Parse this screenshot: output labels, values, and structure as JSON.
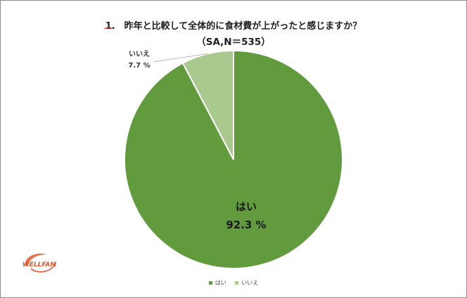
{
  "title_line1": "1.　昨年と比較して全体的に食材費が上がったと感じますか？",
  "title_line2": "（SA,N＝535）",
  "logo_text": "WELLFAM",
  "colors": {
    "yes": "#629a3e",
    "no": "#a9c98e",
    "border": "#ffffff",
    "logo": "#e4572e"
  },
  "chart_data": {
    "type": "pie",
    "title": "1.　昨年と比較して全体的に食材費が上がったと感じますか？",
    "subtitle": "（SA,N＝535）",
    "slices": [
      {
        "label": "はい",
        "value": 92.3,
        "value_label": "92.3 %"
      },
      {
        "label": "いいえ",
        "value": 7.7,
        "value_label": "7.7 %"
      }
    ],
    "legend": [
      "はい",
      "いいえ"
    ],
    "legend_position": "bottom"
  }
}
